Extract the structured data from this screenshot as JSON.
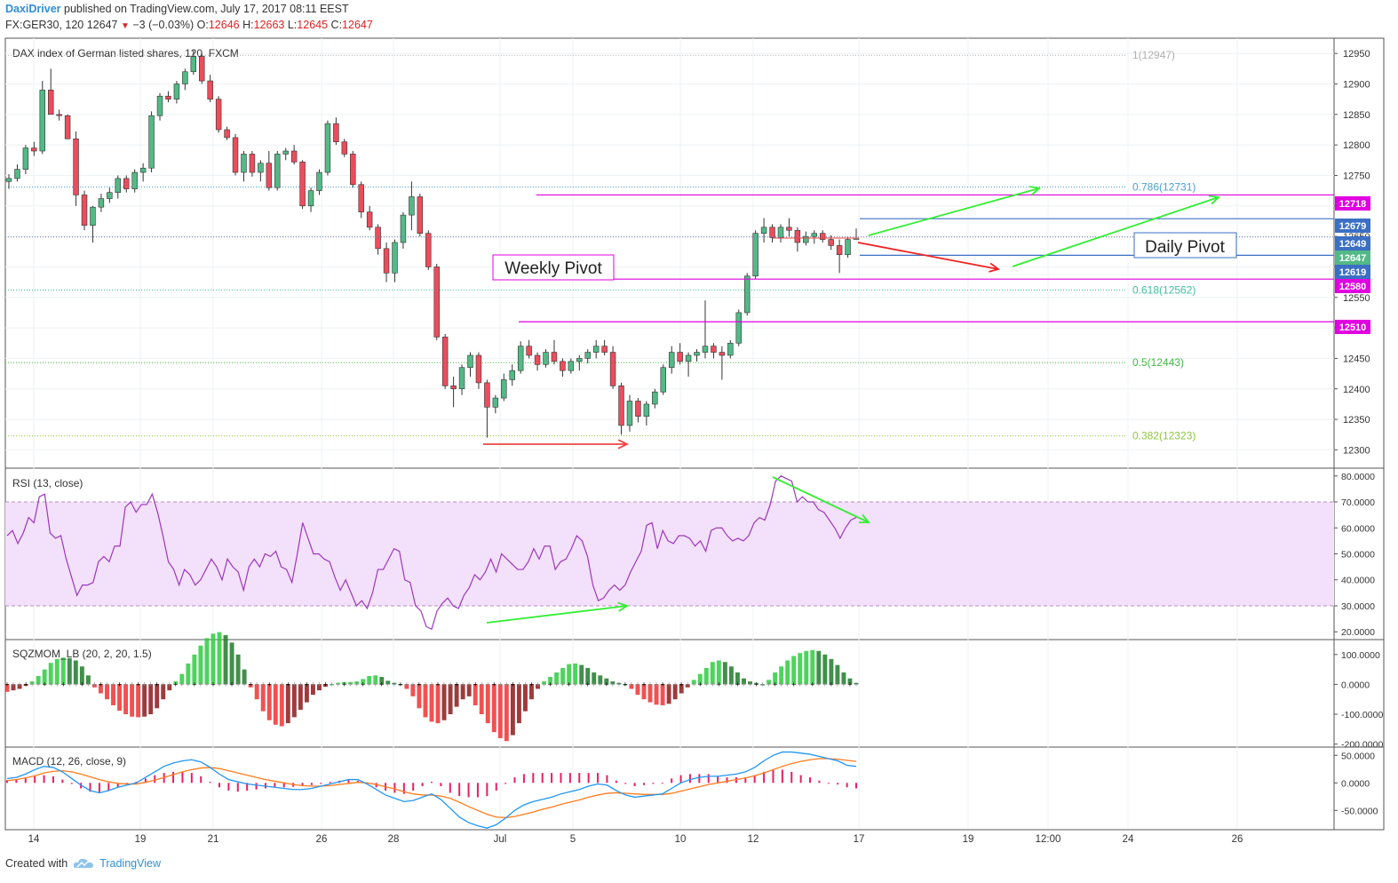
{
  "header": {
    "author": "DaxiDriver",
    "published_text": "published on TradingView.com, July 17, 2017 08:11 EEST",
    "symbol": "FX:GER30, 120",
    "last": "12647",
    "change": "−3 (−0.03%)",
    "o_label": "O:",
    "o_value": "12646",
    "h_label": "H:",
    "h_value": "12663",
    "l_label": "L:",
    "l_value": "12645",
    "c_label": "C:",
    "c_value": "12647"
  },
  "footer": {
    "created_with": "Created with",
    "brand": "TradingView"
  },
  "colors": {
    "up": "#53b987",
    "down": "#eb4d5c",
    "pivot": "#e000e0",
    "rsi": "#9b38b8",
    "macd": "#2196f3",
    "signal": "#ff7c1f",
    "hist": "#e91e63",
    "blue_level": "#3b6fc4"
  },
  "chart_data": [
    {
      "type": "candlestick",
      "title": "DAX index of German listed shares, 120, FXCM",
      "ylim": [
        12270,
        12975
      ],
      "y_ticks": [
        "12950",
        "12900",
        "12850",
        "12800",
        "12750",
        "12700",
        "12650",
        "12600",
        "12550",
        "12500",
        "12450",
        "12400",
        "12350",
        "12300"
      ],
      "x_tick_labels": [
        "14",
        "19",
        "21",
        "26",
        "28",
        "Jul",
        "5",
        "10",
        "12",
        "17",
        "19",
        "12:00",
        "24",
        "26"
      ],
      "candles_ohlc": [
        [
          12740,
          12752,
          12728,
          12745
        ],
        [
          12745,
          12768,
          12740,
          12760
        ],
        [
          12760,
          12800,
          12752,
          12795
        ],
        [
          12795,
          12805,
          12782,
          12790
        ],
        [
          12790,
          12905,
          12785,
          12890
        ],
        [
          12890,
          12925,
          12850,
          12850
        ],
        [
          12850,
          12858,
          12840,
          12848
        ],
        [
          12848,
          12850,
          12810,
          12810
        ],
        [
          12810,
          12822,
          12700,
          12718
        ],
        [
          12718,
          12725,
          12660,
          12668
        ],
        [
          12668,
          12700,
          12640,
          12698
        ],
        [
          12698,
          12720,
          12690,
          12712
        ],
        [
          12712,
          12730,
          12705,
          12722
        ],
        [
          12722,
          12750,
          12712,
          12745
        ],
        [
          12745,
          12750,
          12722,
          12728
        ],
        [
          12728,
          12760,
          12722,
          12755
        ],
        [
          12755,
          12770,
          12740,
          12762
        ],
        [
          12762,
          12855,
          12755,
          12848
        ],
        [
          12848,
          12885,
          12840,
          12880
        ],
        [
          12880,
          12888,
          12870,
          12875
        ],
        [
          12875,
          12905,
          12868,
          12900
        ],
        [
          12900,
          12925,
          12890,
          12920
        ],
        [
          12920,
          12955,
          12915,
          12945
        ],
        [
          12945,
          12950,
          12900,
          12905
        ],
        [
          12905,
          12915,
          12870,
          12875
        ],
        [
          12875,
          12880,
          12820,
          12825
        ],
        [
          12825,
          12830,
          12808,
          12812
        ],
        [
          12812,
          12818,
          12750,
          12755
        ],
        [
          12755,
          12790,
          12740,
          12785
        ],
        [
          12785,
          12790,
          12748,
          12755
        ],
        [
          12755,
          12775,
          12740,
          12770
        ],
        [
          12770,
          12790,
          12725,
          12730
        ],
        [
          12730,
          12790,
          12725,
          12785
        ],
        [
          12785,
          12795,
          12775,
          12790
        ],
        [
          12790,
          12800,
          12768,
          12772
        ],
        [
          12772,
          12775,
          12695,
          12700
        ],
        [
          12700,
          12730,
          12690,
          12725
        ],
        [
          12725,
          12760,
          12718,
          12755
        ],
        [
          12755,
          12840,
          12750,
          12835
        ],
        [
          12835,
          12845,
          12800,
          12805
        ],
        [
          12805,
          12810,
          12780,
          12785
        ],
        [
          12785,
          12790,
          12730,
          12735
        ],
        [
          12735,
          12740,
          12680,
          12690
        ],
        [
          12690,
          12700,
          12660,
          12665
        ],
        [
          12665,
          12670,
          12620,
          12630
        ],
        [
          12630,
          12640,
          12575,
          12590
        ],
        [
          12590,
          12645,
          12575,
          12640
        ],
        [
          12640,
          12690,
          12630,
          12685
        ],
        [
          12685,
          12740,
          12660,
          12715
        ],
        [
          12715,
          12720,
          12650,
          12655
        ],
        [
          12655,
          12660,
          12595,
          12600
        ],
        [
          12600,
          12605,
          12480,
          12485
        ],
        [
          12485,
          12490,
          12400,
          12405
        ],
        [
          12405,
          12420,
          12370,
          12400
        ],
        [
          12400,
          12440,
          12390,
          12435
        ],
        [
          12435,
          12460,
          12420,
          12455
        ],
        [
          12455,
          12460,
          12400,
          12410
        ],
        [
          12410,
          12415,
          12320,
          12370
        ],
        [
          12370,
          12390,
          12360,
          12385
        ],
        [
          12385,
          12425,
          12380,
          12415
        ],
        [
          12415,
          12440,
          12405,
          12430
        ],
        [
          12430,
          12478,
          12425,
          12470
        ],
        [
          12470,
          12480,
          12450,
          12455
        ],
        [
          12455,
          12460,
          12430,
          12440
        ],
        [
          12440,
          12465,
          12435,
          12460
        ],
        [
          12460,
          12480,
          12440,
          12445
        ],
        [
          12445,
          12450,
          12420,
          12430
        ],
        [
          12430,
          12450,
          12425,
          12445
        ],
        [
          12445,
          12455,
          12430,
          12450
        ],
        [
          12450,
          12465,
          12442,
          12460
        ],
        [
          12460,
          12480,
          12450,
          12470
        ],
        [
          12470,
          12480,
          12455,
          12460
        ],
        [
          12460,
          12470,
          12400,
          12405
        ],
        [
          12405,
          12410,
          12325,
          12340
        ],
        [
          12340,
          12390,
          12330,
          12380
        ],
        [
          12380,
          12385,
          12345,
          12355
        ],
        [
          12355,
          12380,
          12340,
          12375
        ],
        [
          12375,
          12400,
          12368,
          12395
        ],
        [
          12395,
          12440,
          12390,
          12435
        ],
        [
          12435,
          12470,
          12425,
          12460
        ],
        [
          12460,
          12475,
          12440,
          12445
        ],
        [
          12445,
          12460,
          12420,
          12455
        ],
        [
          12455,
          12465,
          12445,
          12460
        ],
        [
          12460,
          12545,
          12450,
          12470
        ],
        [
          12470,
          12475,
          12450,
          12460
        ],
        [
          12460,
          12470,
          12415,
          12455
        ],
        [
          12455,
          12480,
          12450,
          12475
        ],
        [
          12475,
          12530,
          12470,
          12525
        ],
        [
          12525,
          12590,
          12520,
          12585
        ],
        [
          12585,
          12660,
          12580,
          12655
        ],
        [
          12655,
          12680,
          12640,
          12665
        ],
        [
          12665,
          12670,
          12640,
          12648
        ],
        [
          12648,
          12670,
          12640,
          12665
        ],
        [
          12665,
          12680,
          12650,
          12660
        ],
        [
          12660,
          12665,
          12625,
          12640
        ],
        [
          12640,
          12658,
          12635,
          12650
        ],
        [
          12650,
          12660,
          12638,
          12655
        ],
        [
          12655,
          12660,
          12640,
          12645
        ],
        [
          12645,
          12652,
          12628,
          12635
        ],
        [
          12635,
          12645,
          12590,
          12620
        ],
        [
          12620,
          12650,
          12615,
          12645
        ],
        [
          12645,
          12663,
          12645,
          12647
        ]
      ],
      "fib_levels": [
        {
          "label": "1(12947)",
          "value": 12947,
          "color": "#b0b0b0"
        },
        {
          "label": "0.786(12731)",
          "value": 12731,
          "color": "#4a9fd0"
        },
        {
          "label": "0.618(12562)",
          "value": 12562,
          "color": "#3fbf9f"
        },
        {
          "label": "0.5(12443)",
          "value": 12443,
          "color": "#44b844"
        },
        {
          "label": "0.382(12323)",
          "value": 12323,
          "color": "#8ec63f"
        }
      ],
      "price_levels": [
        {
          "value": 12718,
          "label": "12718",
          "color": "#e000e0"
        },
        {
          "value": 12679,
          "label": "12679",
          "color": "#3b6fc4"
        },
        {
          "value": 12649,
          "label": "12649",
          "color": "#3b6fc4"
        },
        {
          "value": 12647,
          "label": "12647",
          "color": "#53b987"
        },
        {
          "value": 12619,
          "label": "12619",
          "color": "#3b6fc4"
        },
        {
          "value": 12580,
          "label": "12580",
          "color": "#e000e0"
        },
        {
          "value": 12510,
          "label": "12510",
          "color": "#e000e0"
        }
      ],
      "annotations": [
        {
          "text": "Weekly Pivot",
          "value": 12600
        },
        {
          "text": "Daily Pivot",
          "value": 12645
        }
      ]
    },
    {
      "type": "line",
      "title": "RSI (13, close)",
      "ylim": [
        17,
        83
      ],
      "y_ticks": [
        "80.0000",
        "70.0000",
        "60.0000",
        "50.0000",
        "40.0000",
        "30.0000",
        "20.0000"
      ],
      "band": [
        30,
        70
      ],
      "values": [
        57,
        59,
        54,
        58,
        64,
        62,
        72,
        73,
        58,
        56,
        57,
        48,
        41,
        34,
        38,
        38,
        39,
        47,
        49,
        47,
        53,
        53,
        68,
        70,
        66,
        69,
        69,
        73,
        66,
        57,
        47,
        44,
        38,
        44,
        42,
        38,
        40,
        44,
        48,
        45,
        40,
        48,
        45,
        43,
        36,
        45,
        48,
        45,
        50,
        49,
        51,
        45,
        44,
        39,
        50,
        62,
        56,
        50,
        50,
        48,
        47,
        41,
        36,
        40,
        35,
        30,
        32,
        29,
        35,
        44,
        44,
        48,
        52,
        51,
        40,
        39,
        30,
        28,
        22,
        21,
        28,
        31,
        33,
        30,
        29,
        34,
        37,
        42,
        40,
        43,
        48,
        43,
        50,
        48,
        46,
        44,
        44,
        47,
        52,
        48,
        53,
        53,
        44,
        47,
        48,
        52,
        57,
        55,
        49,
        38,
        32,
        33,
        36,
        38,
        36,
        38,
        43,
        47,
        51,
        61,
        62,
        52,
        59,
        55,
        54,
        57,
        57,
        56,
        53,
        55,
        51,
        59,
        60,
        60,
        57,
        55,
        56,
        55,
        57,
        62,
        64,
        63,
        69,
        78,
        80,
        79,
        78,
        70,
        72,
        70,
        70,
        67,
        66,
        63,
        60,
        56,
        60,
        63,
        64
      ],
      "divergence_labels": []
    },
    {
      "type": "bar",
      "title": "SQZMOM_LB (20, 2, 20, 1.5)",
      "ylim": [
        -210,
        150
      ],
      "y_ticks": [
        "100.0000",
        "0.0000",
        "-100.0000",
        "-200.0000"
      ],
      "values": [
        -25,
        -20,
        -15,
        -5,
        10,
        28,
        50,
        72,
        85,
        90,
        88,
        80,
        60,
        30,
        -10,
        -30,
        -50,
        -70,
        -88,
        -100,
        -108,
        -110,
        -108,
        -100,
        -80,
        -50,
        -20,
        10,
        35,
        70,
        100,
        130,
        155,
        170,
        175,
        165,
        140,
        100,
        50,
        -10,
        -50,
        -90,
        -120,
        -135,
        -140,
        -130,
        -110,
        -85,
        -60,
        -35,
        -20,
        -8,
        0,
        5,
        8,
        8,
        10,
        18,
        28,
        30,
        25,
        12,
        5,
        0,
        -15,
        -40,
        -80,
        -110,
        -125,
        -130,
        -120,
        -100,
        -75,
        -50,
        -40,
        -70,
        -100,
        -130,
        -160,
        -180,
        -190,
        -170,
        -130,
        -90,
        -50,
        -15,
        10,
        25,
        40,
        55,
        68,
        70,
        65,
        55,
        40,
        30,
        20,
        10,
        5,
        0,
        -15,
        -35,
        -50,
        -60,
        -68,
        -70,
        -65,
        -50,
        -30,
        -10,
        15,
        35,
        55,
        75,
        80,
        75,
        60,
        40,
        20,
        10,
        5,
        0,
        15,
        40,
        60,
        80,
        95,
        105,
        112,
        115,
        112,
        100,
        85,
        65,
        40,
        20,
        5
      ]
    },
    {
      "type": "line",
      "title": "MACD (12, 26, close, 9)",
      "ylim": [
        -85,
        65
      ],
      "y_ticks": [
        "50.0000",
        "0.0000",
        "-50.0000"
      ],
      "macd": [
        8,
        10,
        16,
        24,
        30,
        28,
        20,
        8,
        -4,
        -14,
        -18,
        -14,
        -8,
        -4,
        0,
        10,
        20,
        30,
        36,
        40,
        42,
        38,
        28,
        16,
        6,
        2,
        -2,
        -4,
        -6,
        -8,
        -10,
        -12,
        -12,
        -10,
        -6,
        -2,
        2,
        6,
        6,
        -2,
        -12,
        -22,
        -28,
        -34,
        -32,
        -26,
        -20,
        -30,
        -46,
        -62,
        -72,
        -78,
        -82,
        -76,
        -64,
        -50,
        -40,
        -34,
        -30,
        -26,
        -20,
        -16,
        -12,
        -6,
        -2,
        -4,
        -14,
        -22,
        -26,
        -24,
        -22,
        -20,
        -10,
        0,
        6,
        10,
        12,
        12,
        14,
        16,
        20,
        28,
        40,
        50,
        56,
        56,
        54,
        52,
        48,
        44,
        40,
        32,
        30
      ],
      "signal": [
        4,
        6,
        9,
        13,
        18,
        21,
        22,
        20,
        16,
        11,
        6,
        2,
        -1,
        -2,
        -2,
        1,
        5,
        10,
        15,
        20,
        24,
        27,
        28,
        26,
        22,
        18,
        14,
        10,
        6,
        3,
        0,
        -3,
        -5,
        -6,
        -6,
        -5,
        -3,
        -1,
        1,
        0,
        -3,
        -7,
        -11,
        -16,
        -20,
        -22,
        -22,
        -24,
        -28,
        -35,
        -43,
        -50,
        -57,
        -62,
        -63,
        -61,
        -57,
        -53,
        -48,
        -44,
        -39,
        -35,
        -31,
        -26,
        -22,
        -19,
        -18,
        -19,
        -20,
        -21,
        -21,
        -21,
        -19,
        -15,
        -11,
        -7,
        -3,
        0,
        3,
        6,
        9,
        13,
        18,
        24,
        30,
        35,
        39,
        42,
        44,
        44,
        43,
        41,
        39
      ],
      "hist": [
        5,
        7,
        10,
        12,
        14,
        12,
        6,
        -2,
        -10,
        -16,
        -18,
        -14,
        -8,
        -3,
        2,
        8,
        14,
        18,
        20,
        20,
        18,
        12,
        2,
        -8,
        -14,
        -16,
        -14,
        -12,
        -10,
        -8,
        -8,
        -7,
        -6,
        -4,
        -2,
        2,
        4,
        6,
        4,
        -2,
        -8,
        -14,
        -18,
        -20,
        -14,
        -6,
        2,
        -6,
        -18,
        -24,
        -26,
        -26,
        -24,
        -14,
        -2,
        10,
        16,
        18,
        18,
        18,
        18,
        18,
        18,
        18,
        18,
        14,
        4,
        -2,
        -6,
        -4,
        -2,
        0,
        8,
        14,
        16,
        16,
        16,
        12,
        10,
        10,
        10,
        14,
        20,
        24,
        24,
        20,
        14,
        10,
        4,
        0,
        -3,
        -8,
        -10
      ]
    }
  ]
}
